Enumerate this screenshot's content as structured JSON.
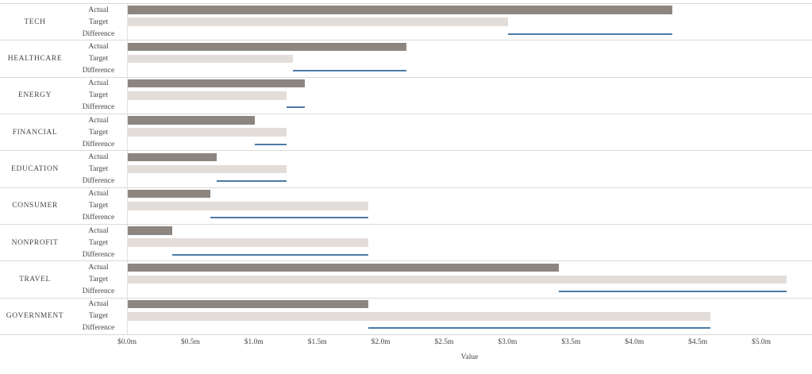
{
  "chart_data": {
    "type": "bar",
    "title": "",
    "xlabel": "Value",
    "orientation": "horizontal",
    "units": "millions USD",
    "xlim": [
      0,
      5.4
    ],
    "grid": "horizontal-row-separators",
    "legend": "none",
    "x_ticks": [
      "$0.0m",
      "$0.5m",
      "$1.0m",
      "$1.5m",
      "$2.0m",
      "$2.5m",
      "$3.0m",
      "$3.5m",
      "$4.0m",
      "$4.5m",
      "$5.0m"
    ],
    "x_tick_values": [
      0,
      0.5,
      1.0,
      1.5,
      2.0,
      2.5,
      3.0,
      3.5,
      4.0,
      4.5,
      5.0
    ],
    "row_labels": [
      "Actual",
      "Target",
      "Difference"
    ],
    "categories": [
      "TECH",
      "HEALTHCARE",
      "ENERGY",
      "FINANCIAL",
      "EDUCATION",
      "CONSUMER",
      "NONPROFIT",
      "TRAVEL",
      "GOVERNMENT"
    ],
    "series": [
      {
        "name": "Actual",
        "values": [
          4.3,
          2.2,
          1.4,
          1.0,
          0.7,
          0.65,
          0.35,
          3.4,
          1.9
        ]
      },
      {
        "name": "Target",
        "values": [
          3.0,
          1.3,
          1.25,
          1.25,
          1.25,
          1.9,
          1.9,
          5.2,
          4.6
        ]
      },
      {
        "name": "Difference",
        "values": [
          1.3,
          0.9,
          0.15,
          -0.25,
          -0.55,
          -1.25,
          -1.55,
          -1.8,
          -2.7
        ]
      }
    ],
    "colors": {
      "actual_bar": "#8c8580",
      "target_bar": "#e3ddd9",
      "difference_line": "#4a7ba6",
      "gridline": "#d9d9d9",
      "text": "#454545",
      "background": "#ffffff"
    }
  }
}
